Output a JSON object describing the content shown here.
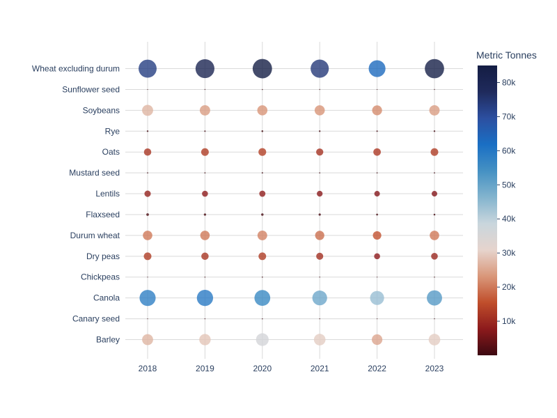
{
  "chart_data": {
    "type": "scatter",
    "x": [
      "2018",
      "2019",
      "2020",
      "2021",
      "2022",
      "2023"
    ],
    "categories": [
      "Barley",
      "Canary seed",
      "Canola",
      "Chickpeas",
      "Dry peas",
      "Durum wheat",
      "Flaxseed",
      "Lentils",
      "Mustard seed",
      "Oats",
      "Rye",
      "Soybeans",
      "Sunflower seed",
      "Wheat excluding durum"
    ],
    "values": {
      "Barley": [
        27000,
        29000,
        36000,
        30000,
        25000,
        30000
      ],
      "Canary seed": [
        150,
        200,
        250,
        200,
        150,
        200
      ],
      "Canola": [
        58000,
        59000,
        56000,
        49000,
        44000,
        52000
      ],
      "Chickpeas": [
        100,
        250,
        300,
        200,
        150,
        250
      ],
      "Dry peas": [
        13000,
        12000,
        13000,
        11000,
        8000,
        10000
      ],
      "Durum wheat": [
        20000,
        20000,
        21000,
        19000,
        16000,
        20000
      ],
      "Flaxseed": [
        1500,
        1200,
        1300,
        1100,
        800,
        700
      ],
      "Lentils": [
        9000,
        8000,
        8500,
        7500,
        7000,
        7000
      ],
      "Mustard seed": [
        300,
        350,
        400,
        300,
        300,
        350
      ],
      "Oats": [
        12000,
        13000,
        13500,
        11500,
        12500,
        13000
      ],
      "Rye": [
        600,
        500,
        700,
        600,
        500,
        600
      ],
      "Soybeans": [
        27000,
        24000,
        23000,
        23000,
        22000,
        24000
      ],
      "Sunflower seed": [
        150,
        200,
        250,
        200,
        150,
        200
      ],
      "Wheat excluding durum": [
        73000,
        80000,
        84000,
        74000,
        63000,
        83000
      ]
    },
    "colorbar": {
      "title": "Metric Tonnes",
      "ticks": [
        "10k",
        "20k",
        "30k",
        "40k",
        "50k",
        "60k",
        "70k",
        "80k"
      ],
      "tick_values": [
        10000,
        20000,
        30000,
        40000,
        50000,
        60000,
        70000,
        80000
      ],
      "cmin": 0,
      "cmax": 85000,
      "colorscale": [
        "#3c0911",
        "#8c1a1c",
        "#c04e2b",
        "#d9977a",
        "#e6d4cd",
        "#c9d6dd",
        "#83b4ce",
        "#4591c3",
        "#1a6fc4",
        "#2c4fa0",
        "#1f2a5c",
        "#141d43"
      ]
    },
    "marker_color_alpha": 0.8,
    "grid": true,
    "legend": "none",
    "title": "",
    "xlabel": "",
    "ylabel": ""
  }
}
